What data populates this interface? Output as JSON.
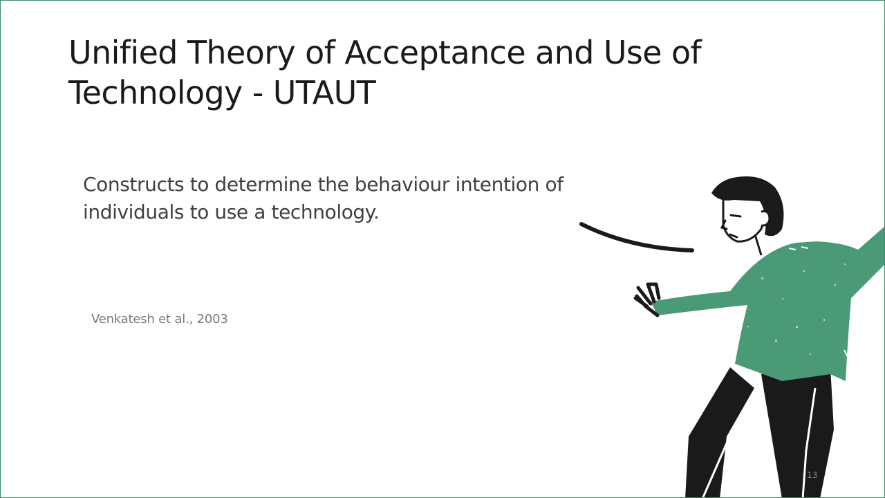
{
  "slide": {
    "title": "Unified Theory of Acceptance and Use of Technology - UTAUT",
    "body": "Constructs to determine the behaviour intention of individuals to use a technology.",
    "citation": "Venkatesh et al., 2003",
    "page_number": "13"
  },
  "illustration": {
    "icon": "gesturing-person-illustration",
    "colors": {
      "sweater": "#4a9a78",
      "trousers": "#1a1a1a",
      "hair": "#1a1a1a",
      "stroke": "#1a1a1a",
      "frame": "#3a8a6a"
    }
  }
}
